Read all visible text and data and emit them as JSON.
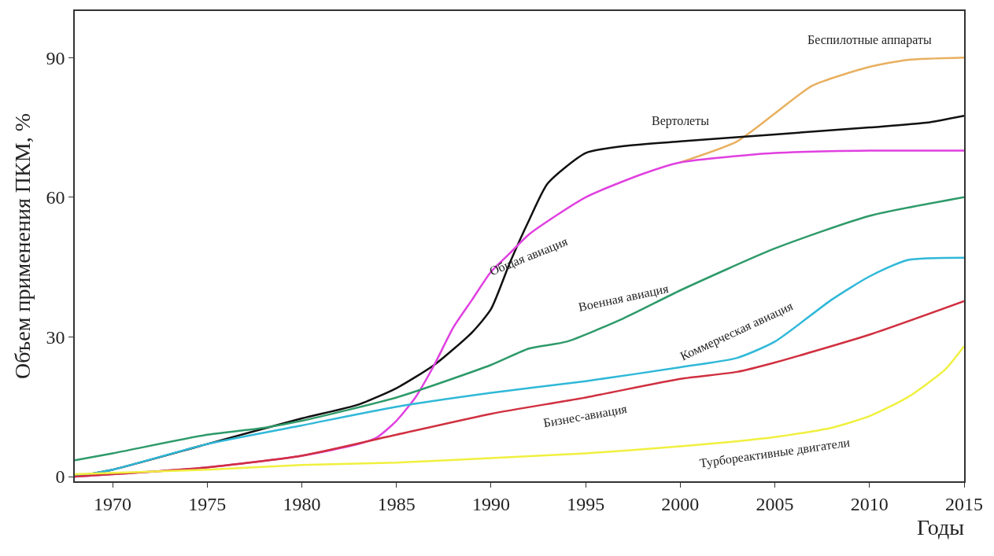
{
  "chart_data": {
    "type": "line",
    "xlabel": "Годы",
    "ylabel": "Объем применения ПКМ, %",
    "xlim": [
      1968,
      2015
    ],
    "ylim": [
      -1,
      100
    ],
    "xticks": [
      1970,
      1975,
      1980,
      1985,
      1990,
      1995,
      2000,
      2005,
      2010,
      2015
    ],
    "yticks": [
      0,
      30,
      60,
      90
    ],
    "grid": false,
    "legend": false,
    "marker": "none",
    "line_style": "solid",
    "series": [
      {
        "name": "Беспилотные аппараты",
        "color": "#e8b060",
        "x": [
          2000,
          2003,
          2005,
          2007,
          2010,
          2012,
          2015
        ],
        "values": [
          67.5,
          72,
          78,
          84,
          88,
          89.5,
          90
        ]
      },
      {
        "name": "Вертолеты",
        "color": "#111111",
        "x": [
          1968,
          1970,
          1975,
          1980,
          1983,
          1985,
          1987,
          1989,
          1990,
          1991,
          1992,
          1993,
          1995,
          1997,
          2000,
          2005,
          2010,
          2013,
          2015
        ],
        "values": [
          0,
          1.5,
          7,
          12.5,
          15.5,
          19,
          24,
          31,
          36,
          46,
          55,
          63,
          69.5,
          71,
          72,
          73.5,
          75,
          76,
          77.5
        ]
      },
      {
        "name": "Общая авиация",
        "color": "#e040e0",
        "x": [
          1968,
          1975,
          1980,
          1983,
          1984,
          1985,
          1986,
          1987,
          1988,
          1989,
          1990,
          1991,
          1992,
          1995,
          1998,
          2000,
          2005,
          2010,
          2015
        ],
        "values": [
          0,
          2,
          4.5,
          7,
          8.5,
          12,
          17,
          24,
          32,
          38,
          44,
          48,
          52,
          60,
          65,
          67.5,
          69.5,
          70,
          70
        ]
      },
      {
        "name": "Военная авиация",
        "color": "#2e9a6a",
        "x": [
          1968,
          1970,
          1975,
          1978,
          1980,
          1985,
          1990,
          1992,
          1994,
          1997,
          2000,
          2005,
          2010,
          2015
        ],
        "values": [
          3.5,
          5,
          9,
          10.5,
          12,
          17,
          24,
          27.5,
          29,
          34,
          40,
          49,
          56,
          60
        ]
      },
      {
        "name": "Коммерческая авиация",
        "color": "#30b8d8",
        "x": [
          1968,
          1970,
          1975,
          1980,
          1985,
          1990,
          1995,
          2000,
          2003,
          2005,
          2008,
          2010,
          2012,
          2015
        ],
        "values": [
          0,
          1.5,
          7,
          11,
          15,
          18,
          20.5,
          23.5,
          25.5,
          29,
          38,
          43,
          46.5,
          47
        ]
      },
      {
        "name": "Бизнес-авиация",
        "color": "#d03040",
        "x": [
          1968,
          1970,
          1975,
          1980,
          1985,
          1990,
          1995,
          2000,
          2003,
          2005,
          2010,
          2015
        ],
        "values": [
          0,
          0.5,
          2,
          4.5,
          9,
          13.5,
          17,
          21,
          22.5,
          24.5,
          30.5,
          37.7
        ]
      },
      {
        "name": "Турбореактивные двигатели",
        "color": "#f0f040",
        "x": [
          1968,
          1975,
          1980,
          1985,
          1990,
          1995,
          2000,
          2005,
          2008,
          2010,
          2012,
          2014,
          2015
        ],
        "values": [
          0.5,
          1.5,
          2.5,
          3,
          4,
          5,
          6.5,
          8.5,
          10.5,
          13,
          17,
          23,
          28
        ]
      }
    ]
  }
}
